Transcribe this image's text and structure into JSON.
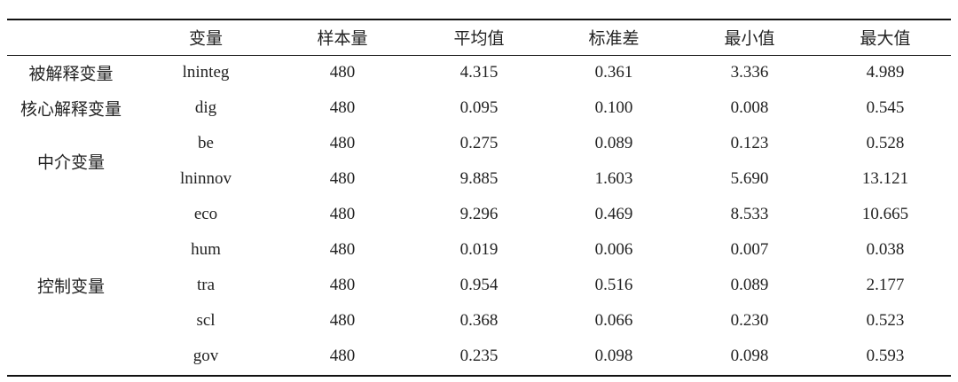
{
  "table": {
    "header": [
      "变量",
      "样本量",
      "平均值",
      "标准差",
      "最小值",
      "最大值"
    ],
    "groups": [
      {
        "label": "被解释变量",
        "rows": [
          [
            "lninteg",
            "480",
            "4.315",
            "0.361",
            "3.336",
            "4.989"
          ]
        ]
      },
      {
        "label": "核心解释变量",
        "rows": [
          [
            "dig",
            "480",
            "0.095",
            "0.100",
            "0.008",
            "0.545"
          ]
        ]
      },
      {
        "label": "中介变量",
        "rows": [
          [
            "be",
            "480",
            "0.275",
            "0.089",
            "0.123",
            "0.528"
          ],
          [
            "lninnov",
            "480",
            "9.885",
            "1.603",
            "5.690",
            "13.121"
          ]
        ]
      },
      {
        "label": "控制变量",
        "rows": [
          [
            "eco",
            "480",
            "9.296",
            "0.469",
            "8.533",
            "10.665"
          ],
          [
            "hum",
            "480",
            "0.019",
            "0.006",
            "0.007",
            "0.038"
          ],
          [
            "tra",
            "480",
            "0.954",
            "0.516",
            "0.089",
            "2.177"
          ],
          [
            "scl",
            "480",
            "0.368",
            "0.066",
            "0.230",
            "0.523"
          ],
          [
            "gov",
            "480",
            "0.235",
            "0.098",
            "0.098",
            "0.593"
          ]
        ]
      }
    ]
  }
}
